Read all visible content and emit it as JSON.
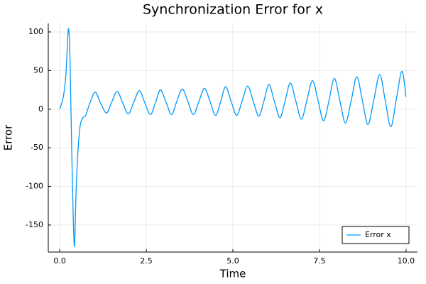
{
  "chart_data": {
    "type": "line",
    "title": "Synchronization Error for x",
    "x_label": "Time",
    "y_label": "Error",
    "x": [
      0,
      0.1,
      0.18,
      0.25,
      0.3,
      0.35,
      0.42,
      0.47,
      0.52,
      0.58,
      0.65,
      0.75,
      0.85,
      1.02,
      1.18,
      1.35,
      1.5,
      1.66,
      1.82,
      1.98,
      2.14,
      2.3,
      2.46,
      2.62,
      2.77,
      2.91,
      3.07,
      3.23,
      3.38,
      3.54,
      3.7,
      3.86,
      4.02,
      4.18,
      4.34,
      4.5,
      4.65,
      4.79,
      4.95,
      5.11,
      5.27,
      5.43,
      5.59,
      5.75,
      5.9,
      6.04,
      6.2,
      6.36,
      6.51,
      6.66,
      6.82,
      6.98,
      7.14,
      7.3,
      7.46,
      7.62,
      7.78,
      7.93,
      8.09,
      8.25,
      8.42,
      8.58,
      8.74,
      8.9,
      9.07,
      9.24,
      9.4,
      9.56,
      9.72,
      9.88,
      10.0
    ],
    "series": [
      {
        "name": "Error x",
        "color": "#009af9",
        "values": [
          0,
          15,
          45,
          104,
          60,
          -60,
          -177,
          -110,
          -60,
          -25,
          -12,
          -8,
          5,
          22,
          8,
          -5,
          9,
          23,
          8,
          -6,
          9,
          24,
          8,
          -7,
          9,
          25,
          9,
          -7,
          10,
          26,
          10,
          -7,
          10,
          27,
          10,
          -8,
          10,
          29,
          10,
          -8,
          11,
          30,
          10,
          -9,
          11,
          32,
          10,
          -11,
          11,
          34,
          10,
          -13,
          12,
          37,
          11,
          -15,
          12,
          40,
          11,
          -18,
          12,
          42,
          11,
          -20,
          12,
          45,
          11,
          -23,
          13,
          49,
          16
        ]
      }
    ],
    "xlim": [
      -0.33,
      10.33
    ],
    "ylim": [
      -185,
      111
    ],
    "xticks": [
      {
        "value": 0,
        "label": "0.0"
      },
      2.5,
      {
        "value": 5,
        "label": "5.0"
      },
      7.5,
      {
        "value": 10,
        "label": "10.0"
      }
    ],
    "yticks": [
      -150,
      -100,
      -50,
      0,
      50,
      100
    ],
    "grid": true,
    "legend": "bottom-right"
  }
}
